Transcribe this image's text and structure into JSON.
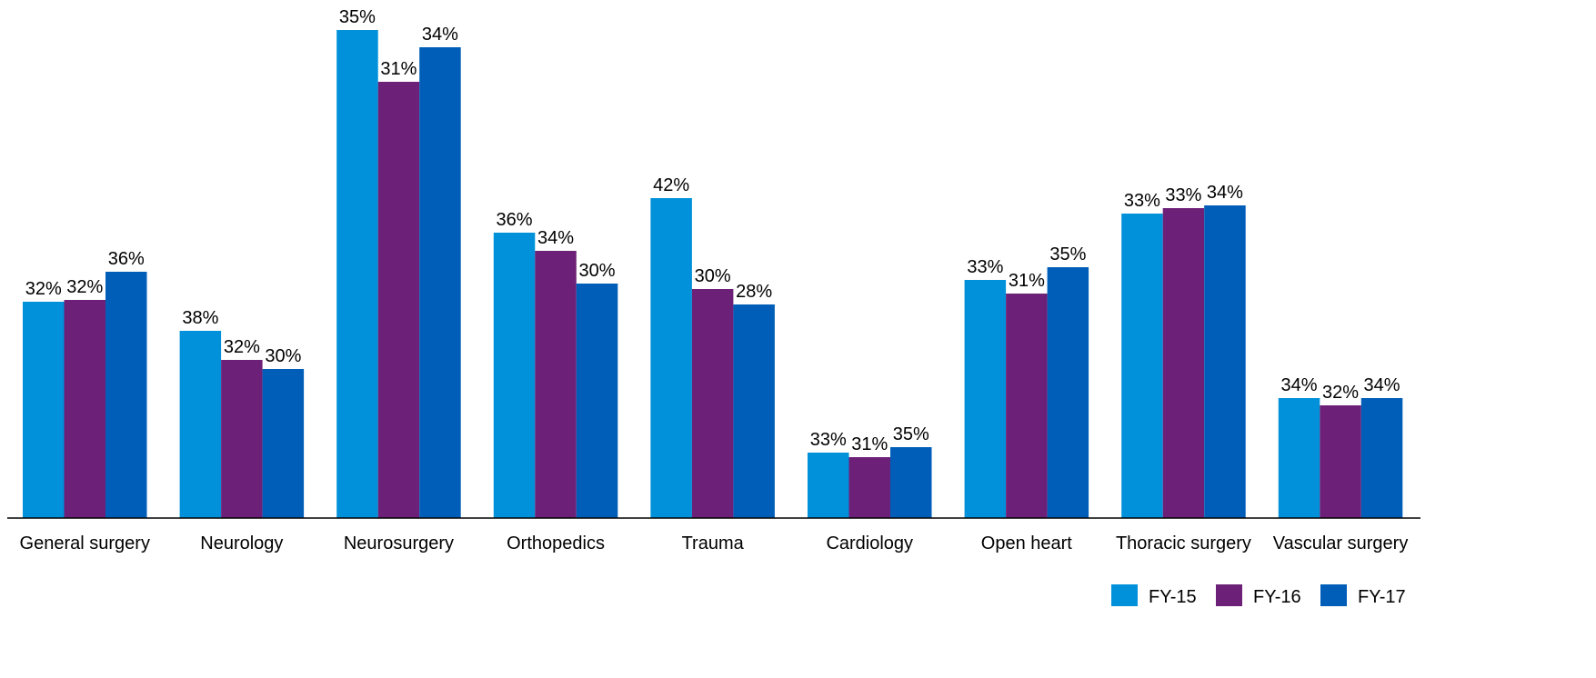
{
  "chart_data": {
    "type": "bar",
    "categories": [
      "General surgery",
      "Neurology",
      "Neurosurgery",
      "Orthopedics",
      "Trauma",
      "Cardiology",
      "Open heart",
      "Thoracic surgery",
      "Vascular surgery"
    ],
    "series": [
      {
        "name": "FY-15",
        "color": "#0091da",
        "values": [
          238,
          206,
          537,
          314,
          352,
          72,
          262,
          335,
          132
        ],
        "data_labels": [
          "32%",
          "38%",
          "35%",
          "36%",
          "42%",
          "33%",
          "33%",
          "33%",
          "34%"
        ]
      },
      {
        "name": "FY-16",
        "color": "#6d2077",
        "values": [
          240,
          174,
          480,
          294,
          252,
          67,
          247,
          341,
          124
        ],
        "data_labels": [
          "32%",
          "32%",
          "31%",
          "34%",
          "30%",
          "31%",
          "31%",
          "33%",
          "32%"
        ]
      },
      {
        "name": "FY-17",
        "color": "#005eb8",
        "values": [
          271,
          164,
          518,
          258,
          235,
          78,
          276,
          344,
          132
        ],
        "data_labels": [
          "36%",
          "30%",
          "34%",
          "30%",
          "28%",
          "35%",
          "35%",
          "34%",
          "34%"
        ]
      }
    ],
    "legend": "bottom-right"
  }
}
